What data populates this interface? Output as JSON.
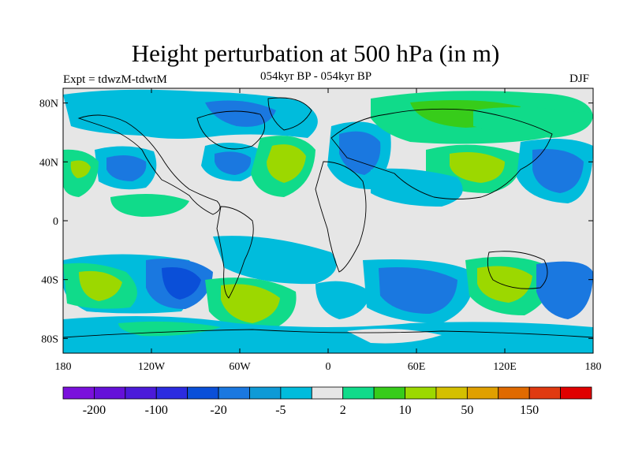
{
  "title": "Height perturbation at 500 hPa (in m)",
  "subtitle": "054kyr BP - 054kyr BP",
  "expt_label": "Expt = tdwzM-tdwtM",
  "season": "DJF",
  "lat_labels": [
    "80N",
    "40N",
    "0",
    "40S",
    "80S"
  ],
  "lon_labels": [
    "180",
    "120W",
    "60W",
    "0",
    "60E",
    "120E",
    "180"
  ],
  "colorbar": {
    "colors": [
      "#7a10dc",
      "#6510d8",
      "#4b1ad9",
      "#2b2be0",
      "#0a4fd8",
      "#1a78e0",
      "#0f9ad6",
      "#00bcdc",
      "#e6e6e6",
      "#10db8a",
      "#37cc1a",
      "#9cd800",
      "#d4c000",
      "#e0a000",
      "#e06a00",
      "#e03a10",
      "#e00000"
    ],
    "tick_labels": [
      "-200",
      "-100",
      "-20",
      "-5",
      "2",
      "10",
      "50",
      "150"
    ]
  },
  "map": {
    "ocean_color": "#e6e6e6",
    "coast_color": "#000000"
  }
}
